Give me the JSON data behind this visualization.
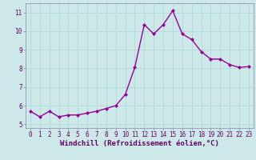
{
  "x": [
    0,
    1,
    2,
    3,
    4,
    5,
    6,
    7,
    8,
    9,
    10,
    11,
    12,
    13,
    14,
    15,
    16,
    17,
    18,
    19,
    20,
    21,
    22,
    23
  ],
  "y": [
    5.7,
    5.4,
    5.7,
    5.4,
    5.5,
    5.5,
    5.6,
    5.7,
    5.85,
    6.0,
    6.6,
    8.05,
    10.35,
    9.85,
    10.35,
    11.1,
    9.85,
    9.55,
    8.9,
    8.5,
    8.5,
    8.2,
    8.05,
    8.1
  ],
  "line_color": "#990099",
  "marker": "D",
  "marker_size": 2,
  "linewidth": 1.0,
  "xlabel": "Windchill (Refroidissement éolien,°C)",
  "xlabel_fontsize": 6.5,
  "xlabel_color": "#660066",
  "ylabel_ticks": [
    5,
    6,
    7,
    8,
    9,
    10,
    11
  ],
  "xticks": [
    0,
    1,
    2,
    3,
    4,
    5,
    6,
    7,
    8,
    9,
    10,
    11,
    12,
    13,
    14,
    15,
    16,
    17,
    18,
    19,
    20,
    21,
    22,
    23
  ],
  "ylim": [
    4.8,
    11.5
  ],
  "xlim": [
    -0.5,
    23.5
  ],
  "bg_color": "#cce8e8",
  "grid_color": "#b0d8d8",
  "tick_fontsize": 5.5,
  "tick_color": "#660066",
  "spine_color": "#8888aa"
}
